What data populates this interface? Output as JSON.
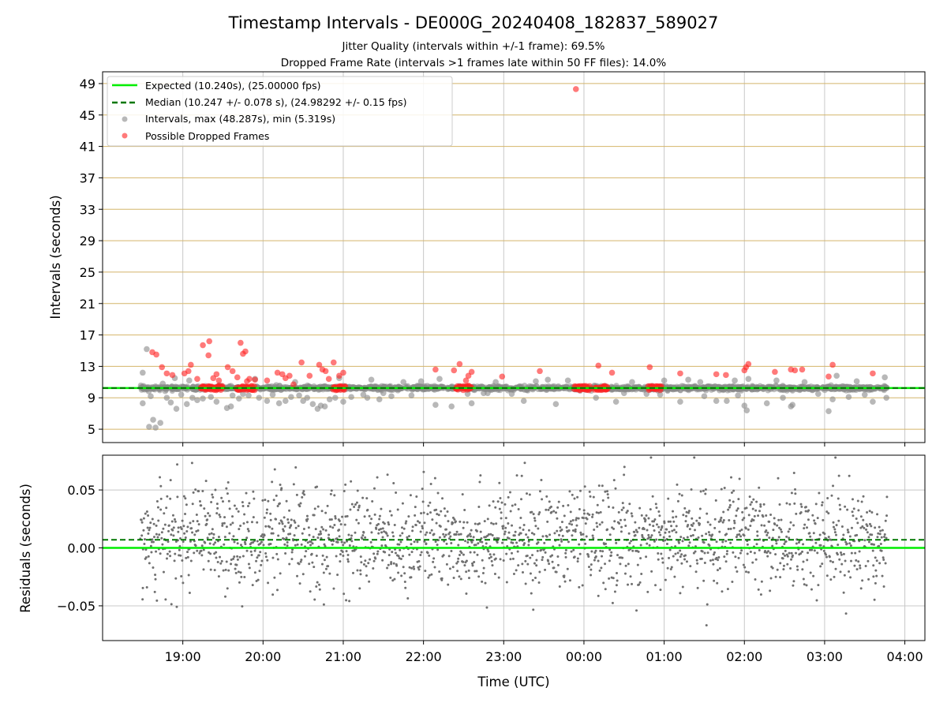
{
  "title": "Timestamp Intervals - DE000G_20240408_182837_589027",
  "subtitle_1": "Jitter Quality (intervals within +/-1 frame): 69.5%",
  "subtitle_2": "Dropped Frame Rate (intervals >1 frames late within 50 FF files): 14.0%",
  "colors": {
    "expected": "#00ee00",
    "median": "#007700",
    "intervals": "#888888",
    "dropped": "#ff2222",
    "hgrid": "#d4b56a",
    "grid": "#c8c8c8"
  },
  "chart_data": [
    {
      "type": "scatter",
      "ylabel": "Intervals (seconds)",
      "xlabel": "",
      "ylim": [
        3.3,
        50.5
      ],
      "y_ticks": [
        5,
        9,
        13,
        17,
        21,
        25,
        29,
        33,
        37,
        41,
        45,
        49
      ],
      "x_range_hours": [
        18.0,
        28.25
      ],
      "x_ticks": [
        {
          "hour": 19,
          "label": "19:00"
        },
        {
          "hour": 20,
          "label": "20:00"
        },
        {
          "hour": 21,
          "label": "21:00"
        },
        {
          "hour": 22,
          "label": "22:00"
        },
        {
          "hour": 23,
          "label": "23:00"
        },
        {
          "hour": 24,
          "label": "00:00"
        },
        {
          "hour": 25,
          "label": "01:00"
        },
        {
          "hour": 26,
          "label": "02:00"
        },
        {
          "hour": 27,
          "label": "03:00"
        },
        {
          "hour": 28,
          "label": "04:00"
        }
      ],
      "grid": "both",
      "legend_position": "top-left",
      "legend": {
        "expected": "Expected (10.240s), (25.00000 fps)",
        "median": "Median (10.247 +/- 0.078 s), (24.98292 +/- 0.15 fps)",
        "intervals": "Intervals, max (48.287s), min (5.319s)",
        "dropped": "Possible Dropped Frames"
      },
      "expected_line": 10.24,
      "median_line": 10.247,
      "band": {
        "x_start": 18.47,
        "x_end": 27.78,
        "center": 10.24
      },
      "dense_dropped_clusters": [
        {
          "x_start": 19.22,
          "x_end": 19.5
        },
        {
          "x_start": 19.67,
          "x_end": 19.9
        },
        {
          "x_start": 20.87,
          "x_end": 21.03
        },
        {
          "x_start": 22.4,
          "x_end": 22.6
        },
        {
          "x_start": 23.88,
          "x_end": 24.08
        },
        {
          "x_start": 24.13,
          "x_end": 24.3
        },
        {
          "x_start": 24.8,
          "x_end": 24.97
        }
      ],
      "outlier_points": [
        [
          18.5,
          12.2
        ],
        [
          18.55,
          15.2
        ],
        [
          18.58,
          5.3
        ],
        [
          18.63,
          6.2
        ],
        [
          18.66,
          5.2
        ],
        [
          18.72,
          5.8
        ],
        [
          18.75,
          10.8
        ],
        [
          18.5,
          8.3
        ],
        [
          18.6,
          9.2
        ],
        [
          18.8,
          9.0
        ],
        [
          18.85,
          8.4
        ],
        [
          18.92,
          7.6
        ],
        [
          18.98,
          9.4
        ],
        [
          19.05,
          8.2
        ],
        [
          19.08,
          11.2
        ],
        [
          19.12,
          9.0
        ],
        [
          19.18,
          8.7
        ],
        [
          19.25,
          8.9
        ],
        [
          19.35,
          9.1
        ],
        [
          19.42,
          8.5
        ],
        [
          19.55,
          7.7
        ],
        [
          19.6,
          7.9
        ],
        [
          19.62,
          9.3
        ],
        [
          19.7,
          8.9
        ],
        [
          19.75,
          9.5
        ],
        [
          19.82,
          9.3
        ],
        [
          19.95,
          9.0
        ],
        [
          20.05,
          8.6
        ],
        [
          20.12,
          9.4
        ],
        [
          20.2,
          8.3
        ],
        [
          20.28,
          8.6
        ],
        [
          20.35,
          9.1
        ],
        [
          20.4,
          11.0
        ],
        [
          20.45,
          9.3
        ],
        [
          20.5,
          8.6
        ],
        [
          20.55,
          9.0
        ],
        [
          20.62,
          8.2
        ],
        [
          20.68,
          7.6
        ],
        [
          20.72,
          8.0
        ],
        [
          20.77,
          7.9
        ],
        [
          20.83,
          8.8
        ],
        [
          20.9,
          9.0
        ],
        [
          21.0,
          8.5
        ],
        [
          21.1,
          9.1
        ],
        [
          21.25,
          9.4
        ],
        [
          21.35,
          11.3
        ],
        [
          21.45,
          8.8
        ],
        [
          21.5,
          9.6
        ],
        [
          21.6,
          9.2
        ],
        [
          21.75,
          11.0
        ],
        [
          21.85,
          9.3
        ],
        [
          21.97,
          11.1
        ],
        [
          22.15,
          8.1
        ],
        [
          22.35,
          7.9
        ],
        [
          22.55,
          9.5
        ],
        [
          22.6,
          8.3
        ],
        [
          22.75,
          9.6
        ],
        [
          22.9,
          11.0
        ],
        [
          23.25,
          8.6
        ],
        [
          23.4,
          11.1
        ],
        [
          23.65,
          8.2
        ],
        [
          23.8,
          11.2
        ],
        [
          24.15,
          9.0
        ],
        [
          24.4,
          8.5
        ],
        [
          24.6,
          11.0
        ],
        [
          24.78,
          9.5
        ],
        [
          25.0,
          11.2
        ],
        [
          25.2,
          8.5
        ],
        [
          25.45,
          11.0
        ],
        [
          25.65,
          8.6
        ],
        [
          25.78,
          8.6
        ],
        [
          25.88,
          11.2
        ],
        [
          25.92,
          9.3
        ],
        [
          26.0,
          8.0
        ],
        [
          26.03,
          7.4
        ],
        [
          26.05,
          11.4
        ],
        [
          26.28,
          8.3
        ],
        [
          26.48,
          9.0
        ],
        [
          26.58,
          7.9
        ],
        [
          26.6,
          8.1
        ],
        [
          26.75,
          11.0
        ],
        [
          26.92,
          9.5
        ],
        [
          27.05,
          7.3
        ],
        [
          27.1,
          8.8
        ],
        [
          27.15,
          11.8
        ],
        [
          27.3,
          9.1
        ],
        [
          27.4,
          11.1
        ],
        [
          27.6,
          8.5
        ],
        [
          27.75,
          11.6
        ],
        [
          27.77,
          9.0
        ],
        [
          24.95,
          9.4
        ],
        [
          23.1,
          9.5
        ],
        [
          22.2,
          11.4
        ],
        [
          21.3,
          9.0
        ],
        [
          20.95,
          11.5
        ],
        [
          25.5,
          9.2
        ],
        [
          26.4,
          11.2
        ],
        [
          27.5,
          9.4
        ],
        [
          19.9,
          11.4
        ],
        [
          18.9,
          11.5
        ],
        [
          22.8,
          9.6
        ],
        [
          23.55,
          11.3
        ],
        [
          24.5,
          9.6
        ],
        [
          25.3,
          11.3
        ]
      ],
      "dropped_points": [
        [
          18.62,
          14.8
        ],
        [
          18.67,
          14.5
        ],
        [
          18.74,
          12.9
        ],
        [
          18.8,
          12.1
        ],
        [
          18.87,
          11.9
        ],
        [
          19.02,
          12.1
        ],
        [
          19.07,
          12.4
        ],
        [
          19.1,
          13.2
        ],
        [
          19.18,
          11.4
        ],
        [
          19.25,
          15.7
        ],
        [
          19.32,
          14.4
        ],
        [
          19.33,
          16.2
        ],
        [
          19.38,
          11.5
        ],
        [
          19.42,
          12.0
        ],
        [
          19.45,
          11.2
        ],
        [
          19.56,
          12.9
        ],
        [
          19.62,
          12.4
        ],
        [
          19.68,
          11.6
        ],
        [
          19.72,
          16.0
        ],
        [
          19.75,
          14.6
        ],
        [
          19.78,
          14.9
        ],
        [
          19.8,
          11.1
        ],
        [
          19.83,
          11.4
        ],
        [
          19.86,
          10.5
        ],
        [
          19.9,
          11.3
        ],
        [
          20.05,
          11.2
        ],
        [
          20.18,
          12.2
        ],
        [
          20.24,
          12.0
        ],
        [
          20.28,
          11.5
        ],
        [
          20.33,
          11.8
        ],
        [
          20.38,
          10.7
        ],
        [
          20.48,
          13.5
        ],
        [
          20.58,
          11.8
        ],
        [
          20.7,
          13.2
        ],
        [
          20.74,
          12.6
        ],
        [
          20.78,
          12.4
        ],
        [
          20.82,
          11.4
        ],
        [
          20.88,
          13.5
        ],
        [
          20.95,
          11.8
        ],
        [
          21.0,
          12.2
        ],
        [
          22.15,
          12.6
        ],
        [
          22.38,
          12.5
        ],
        [
          22.45,
          13.3
        ],
        [
          22.53,
          11.2
        ],
        [
          22.56,
          11.8
        ],
        [
          22.6,
          12.3
        ],
        [
          22.98,
          11.7
        ],
        [
          23.45,
          12.4
        ],
        [
          24.18,
          13.1
        ],
        [
          24.35,
          12.2
        ],
        [
          24.82,
          12.9
        ],
        [
          25.2,
          12.1
        ],
        [
          25.65,
          12.0
        ],
        [
          25.77,
          11.9
        ],
        [
          26.0,
          12.5
        ],
        [
          26.02,
          12.9
        ],
        [
          26.05,
          13.3
        ],
        [
          26.38,
          12.3
        ],
        [
          26.58,
          12.6
        ],
        [
          26.63,
          12.5
        ],
        [
          26.72,
          12.6
        ],
        [
          27.05,
          11.7
        ],
        [
          27.1,
          13.2
        ],
        [
          27.6,
          12.1
        ],
        [
          23.9,
          48.3
        ]
      ]
    },
    {
      "type": "scatter",
      "ylabel": "Residuals (seconds)",
      "xlabel": "Time (UTC)",
      "ylim": [
        -0.08,
        0.08
      ],
      "y_ticks": [
        {
          "value": 0.05,
          "label": "0.05"
        },
        {
          "value": 0.0,
          "label": "0.00"
        },
        {
          "value": -0.05,
          "label": "−0.05"
        }
      ],
      "expected_line": 0.0,
      "median_line": 0.007,
      "grid": "both",
      "residual_spread_sd": 0.022,
      "residual_count_approx": 1900,
      "x_range_hours": [
        18.47,
        27.78
      ]
    }
  ]
}
